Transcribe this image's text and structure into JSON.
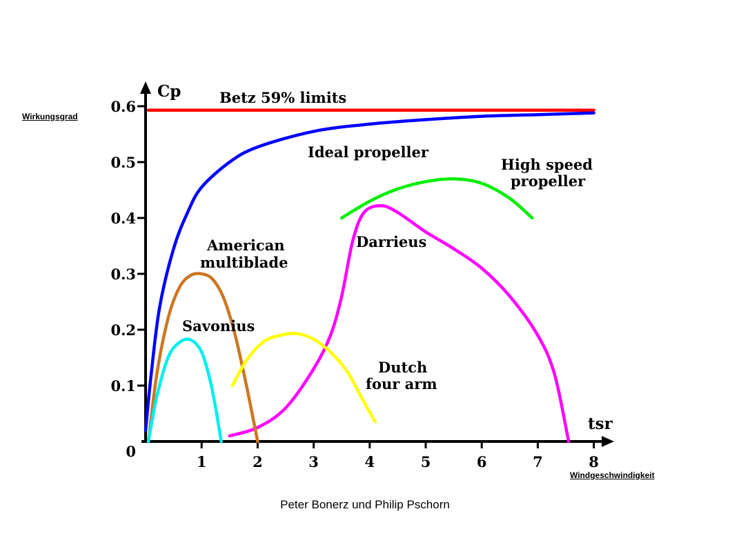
{
  "page": {
    "left_label": "Wirkungsgrad",
    "right_label": "Windgeschwindigkeit",
    "footer": "Peter Bonerz und Philip Pschorn"
  },
  "chart_data": {
    "type": "line",
    "xlabel": "tsr",
    "ylabel": "Cp",
    "xlim": [
      0,
      8
    ],
    "ylim": [
      0,
      0.6
    ],
    "x_ticks": [
      "1",
      "2",
      "3",
      "4",
      "5",
      "6",
      "7",
      "8"
    ],
    "y_ticks": [
      "0",
      "0.1",
      "0.2",
      "0.3",
      "0.4",
      "0.5",
      "0.6"
    ],
    "y_tick_values": [
      0,
      0.1,
      0.2,
      0.3,
      0.4,
      0.5,
      0.6
    ],
    "grid": false,
    "legend": "none",
    "series": [
      {
        "name": "Betz 59% limits",
        "color": "#ff0000",
        "label_lines": [
          "Betz 59% limits"
        ],
        "points": [
          [
            0.05,
            0.593
          ],
          [
            8.0,
            0.593
          ]
        ]
      },
      {
        "name": "Ideal propeller",
        "color": "#0000ff",
        "label_lines": [
          "Ideal propeller"
        ],
        "points": [
          [
            0.0,
            0.02
          ],
          [
            0.1,
            0.12
          ],
          [
            0.25,
            0.24
          ],
          [
            0.5,
            0.345
          ],
          [
            0.75,
            0.41
          ],
          [
            1.0,
            0.455
          ],
          [
            1.5,
            0.5
          ],
          [
            2.0,
            0.527
          ],
          [
            3.0,
            0.555
          ],
          [
            4.0,
            0.568
          ],
          [
            5.0,
            0.576
          ],
          [
            6.0,
            0.582
          ],
          [
            7.0,
            0.585
          ],
          [
            8.0,
            0.588
          ]
        ]
      },
      {
        "name": "High speed propeller",
        "color": "#00ee00",
        "label_lines": [
          "High speed",
          "propeller"
        ],
        "points": [
          [
            3.5,
            0.4
          ],
          [
            4.0,
            0.43
          ],
          [
            4.5,
            0.452
          ],
          [
            5.0,
            0.465
          ],
          [
            5.5,
            0.47
          ],
          [
            6.0,
            0.462
          ],
          [
            6.5,
            0.435
          ],
          [
            6.9,
            0.4
          ]
        ]
      },
      {
        "name": "Darrieus",
        "color": "#ff00ff",
        "label_lines": [
          "Darrieus"
        ],
        "points": [
          [
            1.5,
            0.01
          ],
          [
            2.0,
            0.025
          ],
          [
            2.5,
            0.06
          ],
          [
            3.0,
            0.13
          ],
          [
            3.3,
            0.19
          ],
          [
            3.5,
            0.26
          ],
          [
            3.7,
            0.36
          ],
          [
            3.9,
            0.41
          ],
          [
            4.2,
            0.422
          ],
          [
            4.5,
            0.41
          ],
          [
            5.0,
            0.375
          ],
          [
            5.5,
            0.345
          ],
          [
            6.0,
            0.31
          ],
          [
            6.5,
            0.26
          ],
          [
            7.0,
            0.19
          ],
          [
            7.3,
            0.12
          ],
          [
            7.55,
            0.0
          ]
        ]
      },
      {
        "name": "American multiblade",
        "color": "#cc7722",
        "label_lines": [
          "American",
          "multiblade"
        ],
        "points": [
          [
            0.05,
            0.0
          ],
          [
            0.2,
            0.12
          ],
          [
            0.4,
            0.22
          ],
          [
            0.6,
            0.275
          ],
          [
            0.8,
            0.297
          ],
          [
            1.0,
            0.3
          ],
          [
            1.2,
            0.29
          ],
          [
            1.4,
            0.255
          ],
          [
            1.6,
            0.19
          ],
          [
            1.8,
            0.1
          ],
          [
            2.0,
            0.0
          ]
        ]
      },
      {
        "name": "Savonius",
        "color": "#00eeee",
        "label_lines": [
          "Savonius"
        ],
        "points": [
          [
            0.05,
            0.0
          ],
          [
            0.2,
            0.08
          ],
          [
            0.4,
            0.15
          ],
          [
            0.6,
            0.177
          ],
          [
            0.8,
            0.182
          ],
          [
            1.0,
            0.16
          ],
          [
            1.15,
            0.11
          ],
          [
            1.25,
            0.06
          ],
          [
            1.35,
            0.0
          ]
        ]
      },
      {
        "name": "Dutch four arm",
        "color": "#ffff00",
        "label_lines": [
          "Dutch",
          "four arm"
        ],
        "points": [
          [
            1.55,
            0.1
          ],
          [
            1.8,
            0.145
          ],
          [
            2.1,
            0.178
          ],
          [
            2.4,
            0.19
          ],
          [
            2.7,
            0.193
          ],
          [
            3.0,
            0.183
          ],
          [
            3.3,
            0.16
          ],
          [
            3.6,
            0.125
          ],
          [
            3.9,
            0.07
          ],
          [
            4.1,
            0.035
          ]
        ]
      }
    ]
  }
}
